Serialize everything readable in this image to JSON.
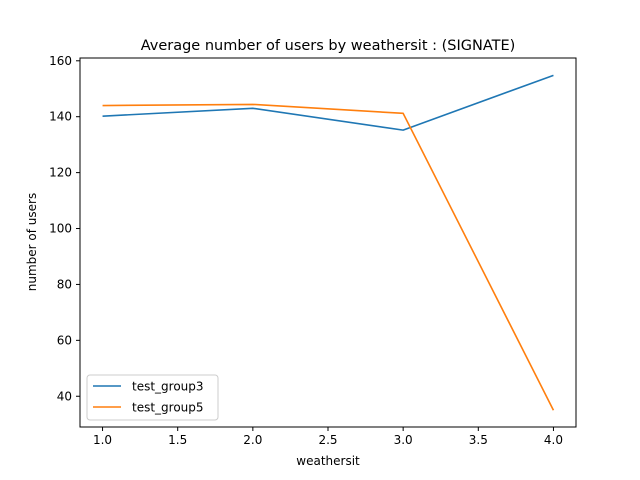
{
  "chart_data": {
    "type": "line",
    "title": "Average number of users by weathersit : (SIGNATE)",
    "xlabel": "weathersit",
    "ylabel": "number of users",
    "x": [
      1.0,
      2.0,
      3.0,
      4.0
    ],
    "xlim": [
      0.85,
      4.15
    ],
    "ylim": [
      29.0,
      161.0
    ],
    "xticks": [
      "1.0",
      "1.5",
      "2.0",
      "2.5",
      "3.0",
      "3.5",
      "4.0"
    ],
    "yticks": [
      "40",
      "60",
      "80",
      "100",
      "120",
      "140",
      "160"
    ],
    "grid": false,
    "legend_position": "lower left",
    "series": [
      {
        "name": "test_group3",
        "color": "#1f77b4",
        "values": [
          140.2,
          143.0,
          135.2,
          154.8
        ]
      },
      {
        "name": "test_group5",
        "color": "#ff7f0e",
        "values": [
          144.0,
          144.4,
          141.2,
          35.0
        ]
      }
    ]
  }
}
